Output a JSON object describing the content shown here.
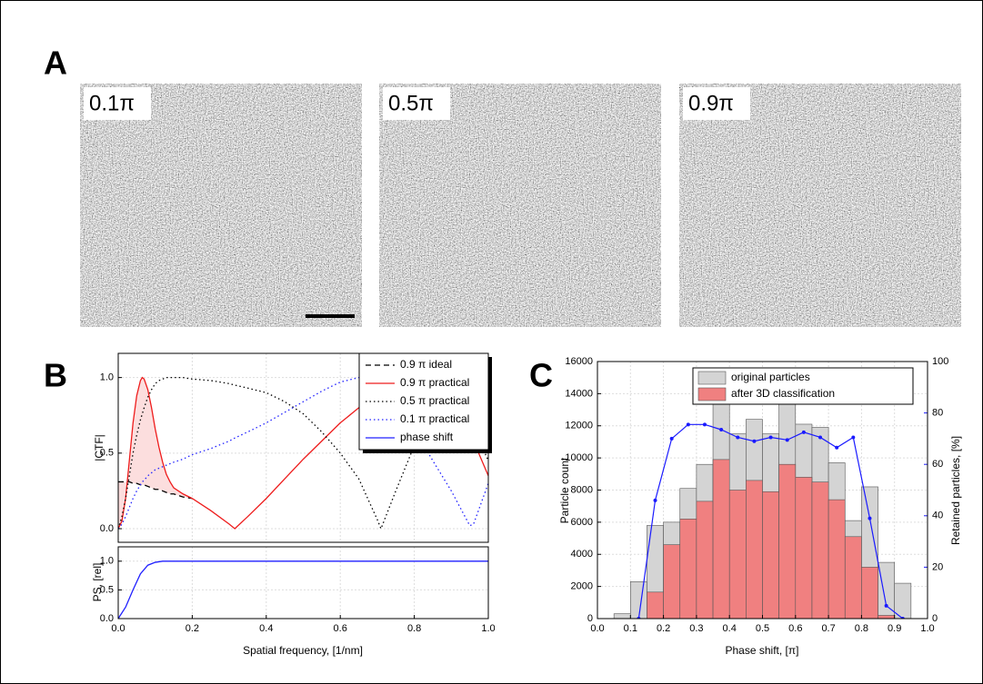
{
  "panel_labels": [
    "A",
    "B",
    "C"
  ],
  "micrograph_labels": [
    "0.1π",
    "0.5π",
    "0.9π"
  ],
  "chart_data": [
    {
      "type": "line",
      "ylabel": "|CTF|",
      "x": [
        0,
        0.01,
        0.02,
        0.03,
        0.04,
        0.05,
        0.06,
        0.065,
        0.07,
        0.08,
        0.09,
        0.1,
        0.11,
        0.12,
        0.13,
        0.14,
        0.15,
        0.175,
        0.2,
        0.25,
        0.3,
        0.315,
        0.35,
        0.4,
        0.45,
        0.5,
        0.55,
        0.6,
        0.65,
        0.7,
        0.71,
        0.75,
        0.8,
        0.85,
        0.9,
        0.95,
        0.96,
        1.0
      ],
      "series": [
        {
          "name": "0.9 π ideal",
          "color": "#000000",
          "style": "dashed",
          "values": [
            0.31,
            0.31,
            0.31,
            0.31,
            0.3,
            0.3,
            0.29,
            0.29,
            0.29,
            0.28,
            0.27,
            0.26,
            0.26,
            0.25,
            0.24,
            0.23,
            0.23,
            0.21,
            0.2,
            null,
            null,
            null,
            null,
            null,
            null,
            null,
            null,
            null,
            null,
            null,
            null,
            null,
            null,
            null,
            null,
            null,
            null,
            null
          ]
        },
        {
          "name": "0.9 π practical",
          "color": "#ee1c1c",
          "style": "solid",
          "values": [
            0,
            0.05,
            0.2,
            0.45,
            0.7,
            0.88,
            0.98,
            1.0,
            0.99,
            0.92,
            0.8,
            0.66,
            0.54,
            0.44,
            0.36,
            0.31,
            0.27,
            0.23,
            0.2,
            0.12,
            0.03,
            0,
            0.08,
            0.2,
            0.33,
            0.46,
            0.58,
            0.7,
            0.8,
            0.88,
            0.9,
            0.96,
            1.0,
            0.97,
            0.85,
            0.63,
            0.58,
            0.35
          ]
        },
        {
          "name": "0.5 π practical",
          "color": "#000000",
          "style": "dotted",
          "values": [
            0,
            0.08,
            0.2,
            0.35,
            0.5,
            0.62,
            0.72,
            0.76,
            0.8,
            0.87,
            0.92,
            0.96,
            0.98,
            0.99,
            1.0,
            1.0,
            1.0,
            1.0,
            0.99,
            0.98,
            0.96,
            0.95,
            0.93,
            0.9,
            0.84,
            0.76,
            0.64,
            0.5,
            0.33,
            0.06,
            0,
            0.25,
            0.55,
            0.85,
            0.95,
            0.72,
            0.67,
            0.45
          ]
        },
        {
          "name": "0.1 π practical",
          "color": "#2020ff",
          "style": "dotted",
          "values": [
            0,
            0.03,
            0.08,
            0.14,
            0.2,
            0.25,
            0.29,
            0.31,
            0.32,
            0.35,
            0.37,
            0.39,
            0.4,
            0.41,
            0.42,
            0.43,
            0.44,
            0.46,
            0.49,
            0.53,
            0.58,
            0.6,
            0.64,
            0.7,
            0.77,
            0.84,
            0.91,
            0.97,
            1.0,
            0.97,
            0.96,
            0.86,
            0.66,
            0.45,
            0.25,
            0.02,
            0.03,
            0.3
          ]
        }
      ],
      "shade": {
        "series": [
          0,
          1
        ],
        "color": "#fcdede"
      },
      "xlim": [
        0,
        1
      ],
      "ylim": [
        -0.09,
        1.16
      ],
      "yticks": [
        {
          "value": 0,
          "label": "0.0"
        },
        0.5,
        {
          "value": 1,
          "label": "1.0"
        }
      ],
      "grid": true
    },
    {
      "type": "line",
      "ylabel": "PS, [rel]",
      "xlabel": "Spatial frequency, [1/nm]",
      "x": [
        0,
        0.02,
        0.04,
        0.06,
        0.08,
        0.1,
        0.12,
        0.15,
        0.2,
        1.0
      ],
      "series": [
        {
          "name": "phase shift",
          "color": "#2020ff",
          "style": "solid",
          "values": [
            0,
            0.2,
            0.5,
            0.78,
            0.93,
            0.98,
            1.0,
            1.0,
            1.0,
            1.0
          ]
        }
      ],
      "xlim": [
        0,
        1
      ],
      "ylim": [
        0,
        1.25
      ],
      "xticks": [
        {
          "value": 0,
          "label": "0.0"
        },
        0.2,
        0.4,
        0.6,
        0.8,
        {
          "value": 1,
          "label": "1.0"
        }
      ],
      "yticks": [
        {
          "value": 0,
          "label": "0.0"
        },
        0.5,
        {
          "value": 1,
          "label": "1.0"
        }
      ],
      "grid": true
    },
    {
      "type": "histogram",
      "xlabel": "Phase shift, [π]",
      "ylabel": "Particle count",
      "y2label": "Retained particles, [%]",
      "bins": [
        0.05,
        0.1,
        0.15,
        0.2,
        0.25,
        0.3,
        0.35,
        0.4,
        0.45,
        0.5,
        0.55,
        0.6,
        0.65,
        0.7,
        0.75,
        0.8,
        0.85,
        0.9,
        0.95
      ],
      "series": [
        {
          "name": "original particles",
          "color": "#d4d4d4",
          "values": [
            300,
            2300,
            5800,
            6000,
            8100,
            9600,
            13400,
            11500,
            12400,
            11500,
            13900,
            12100,
            11900,
            9700,
            6100,
            8200,
            3500,
            2200
          ]
        },
        {
          "name": "after 3D classification",
          "color": "#f08080",
          "values": [
            0,
            0,
            1650,
            4600,
            6200,
            7300,
            9900,
            8000,
            8600,
            7900,
            9600,
            8800,
            8500,
            7400,
            5100,
            3200,
            200,
            0
          ]
        }
      ],
      "line": {
        "color": "#1a1aff",
        "axis": "y2",
        "x": [
          0.125,
          0.175,
          0.225,
          0.275,
          0.325,
          0.375,
          0.425,
          0.475,
          0.525,
          0.575,
          0.625,
          0.675,
          0.725,
          0.775,
          0.825,
          0.875,
          0.925
        ],
        "values": [
          0,
          46,
          70,
          75.5,
          75.5,
          73.5,
          70.5,
          69,
          70.5,
          69.5,
          72.5,
          70.5,
          66.5,
          70.5,
          39,
          5,
          0
        ]
      },
      "xlim": [
        0,
        1
      ],
      "ylim": [
        0,
        16000
      ],
      "y2lim": [
        0,
        100
      ],
      "xticks": [
        {
          "value": 0,
          "label": "0.0"
        },
        0.1,
        0.2,
        0.3,
        0.4,
        0.5,
        0.6,
        0.7,
        0.8,
        0.9,
        {
          "value": 1,
          "label": "1.0"
        }
      ],
      "yticks": [
        0,
        2000,
        4000,
        6000,
        8000,
        10000,
        12000,
        14000,
        16000
      ],
      "y2ticks": [
        0,
        20,
        40,
        60,
        80,
        100
      ],
      "grid": true
    }
  ]
}
